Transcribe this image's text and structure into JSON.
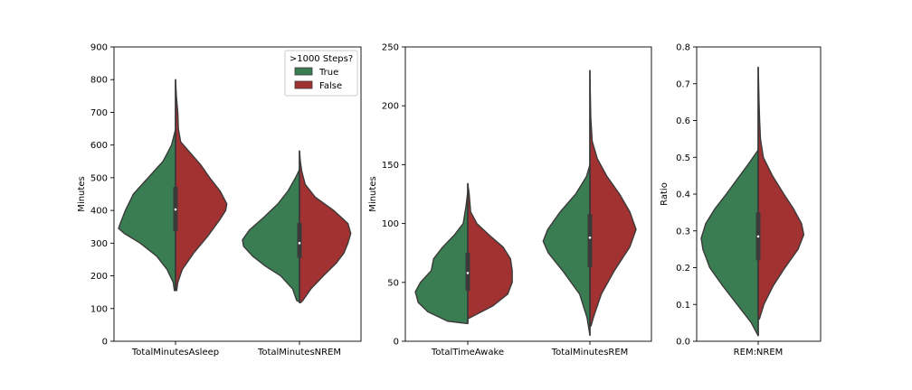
{
  "chart_data": [
    {
      "type": "violin",
      "ylabel": "Minutes",
      "ylim": [
        0,
        900
      ],
      "yticks": [
        0,
        100,
        200,
        300,
        400,
        500,
        600,
        700,
        800,
        900
      ],
      "categories": [
        "TotalMinutesAsleep",
        "TotalMinutesNREM"
      ],
      "legend": {
        "title": ">1000 Steps?",
        "position": "top-right",
        "entries": [
          "True",
          "False"
        ]
      },
      "series": [
        {
          "violins": [
            {
              "ymin": 155,
              "ymax": 648,
              "profile": [
                [
                  155,
                  0.02
                ],
                [
                  180,
                  0.04
                ],
                [
                  220,
                  0.15
                ],
                [
                  260,
                  0.33
                ],
                [
                  300,
                  0.62
                ],
                [
                  330,
                  0.9
                ],
                [
                  345,
                  1.0
                ],
                [
                  360,
                  0.97
                ],
                [
                  400,
                  0.88
                ],
                [
                  450,
                  0.74
                ],
                [
                  500,
                  0.48
                ],
                [
                  550,
                  0.22
                ],
                [
                  600,
                  0.07
                ],
                [
                  648,
                  0.0
                ]
              ],
              "median": 403,
              "q1": 337,
              "q3": 472
            },
            {
              "ymin": 120,
              "ymax": 525,
              "profile": [
                [
                  120,
                  0.0
                ],
                [
                  125,
                  0.05
                ],
                [
                  160,
                  0.12
                ],
                [
                  200,
                  0.33
                ],
                [
                  230,
                  0.6
                ],
                [
                  260,
                  0.82
                ],
                [
                  290,
                  0.98
                ],
                [
                  310,
                  1.0
                ],
                [
                  340,
                  0.88
                ],
                [
                  380,
                  0.62
                ],
                [
                  420,
                  0.38
                ],
                [
                  460,
                  0.2
                ],
                [
                  500,
                  0.07
                ],
                [
                  525,
                  0.0
                ]
              ],
              "median": 300,
              "q1": 255,
              "q3": 362
            }
          ]
        },
        {
          "violins": [
            {
              "ymin": 155,
              "ymax": 800,
              "profile": [
                [
                  155,
                  0.02
                ],
                [
                  180,
                  0.04
                ],
                [
                  220,
                  0.12
                ],
                [
                  270,
                  0.32
                ],
                [
                  320,
                  0.56
                ],
                [
                  370,
                  0.77
                ],
                [
                  400,
                  0.88
                ],
                [
                  420,
                  0.9
                ],
                [
                  460,
                  0.78
                ],
                [
                  500,
                  0.6
                ],
                [
                  540,
                  0.44
                ],
                [
                  580,
                  0.24
                ],
                [
                  610,
                  0.09
                ],
                [
                  650,
                  0.05
                ],
                [
                  700,
                  0.04
                ],
                [
                  750,
                  0.015
                ],
                [
                  800,
                  0.0
                ]
              ],
              "median": 403,
              "q1": 337,
              "q3": 472
            },
            {
              "ymin": 118,
              "ymax": 582,
              "profile": [
                [
                  118,
                  0.02
                ],
                [
                  125,
                  0.06
                ],
                [
                  160,
                  0.2
                ],
                [
                  200,
                  0.42
                ],
                [
                  240,
                  0.65
                ],
                [
                  270,
                  0.78
                ],
                [
                  300,
                  0.85
                ],
                [
                  330,
                  0.9
                ],
                [
                  360,
                  0.85
                ],
                [
                  400,
                  0.6
                ],
                [
                  440,
                  0.28
                ],
                [
                  480,
                  0.1
                ],
                [
                  520,
                  0.04
                ],
                [
                  550,
                  0.015
                ],
                [
                  582,
                  0.0
                ]
              ],
              "median": 300,
              "q1": 255,
              "q3": 362
            }
          ]
        }
      ]
    },
    {
      "type": "violin",
      "ylabel": "Minutes",
      "ylim": [
        0,
        250
      ],
      "yticks": [
        0,
        50,
        100,
        150,
        200,
        250
      ],
      "categories": [
        "TotalTimeAwake",
        "TotalMinutesREM"
      ],
      "series": [
        {
          "violins": [
            {
              "ymin": 15,
              "ymax": 127,
              "profile": [
                [
                  15,
                  0.0
                ],
                [
                  17,
                  0.35
                ],
                [
                  25,
                  0.7
                ],
                [
                  33,
                  0.87
                ],
                [
                  42,
                  0.92
                ],
                [
                  50,
                  0.83
                ],
                [
                  60,
                  0.64
                ],
                [
                  70,
                  0.6
                ],
                [
                  80,
                  0.44
                ],
                [
                  90,
                  0.24
                ],
                [
                  100,
                  0.08
                ],
                [
                  115,
                  0.03
                ],
                [
                  127,
                  0.0
                ]
              ],
              "median": 58,
              "q1": 43,
              "q3": 75
            },
            {
              "ymin": 5,
              "ymax": 150,
              "profile": [
                [
                  5,
                  0.0
                ],
                [
                  20,
                  0.05
                ],
                [
                  40,
                  0.18
                ],
                [
                  60,
                  0.48
                ],
                [
                  75,
                  0.73
                ],
                [
                  85,
                  0.82
                ],
                [
                  95,
                  0.74
                ],
                [
                  110,
                  0.52
                ],
                [
                  125,
                  0.25
                ],
                [
                  140,
                  0.06
                ],
                [
                  150,
                  0.0
                ]
              ],
              "median": 88,
              "q1": 63,
              "q3": 108
            }
          ]
        },
        {
          "violins": [
            {
              "ymin": 19,
              "ymax": 134,
              "profile": [
                [
                  19,
                  0.0
                ],
                [
                  22,
                  0.12
                ],
                [
                  30,
                  0.44
                ],
                [
                  40,
                  0.7
                ],
                [
                  50,
                  0.78
                ],
                [
                  60,
                  0.78
                ],
                [
                  70,
                  0.75
                ],
                [
                  80,
                  0.62
                ],
                [
                  90,
                  0.38
                ],
                [
                  100,
                  0.16
                ],
                [
                  110,
                  0.05
                ],
                [
                  125,
                  0.025
                ],
                [
                  134,
                  0.0
                ]
              ],
              "median": 58,
              "q1": 43,
              "q3": 75
            },
            {
              "ymin": 13,
              "ymax": 230,
              "profile": [
                [
                  13,
                  0.02
                ],
                [
                  20,
                  0.06
                ],
                [
                  40,
                  0.2
                ],
                [
                  60,
                  0.43
                ],
                [
                  80,
                  0.7
                ],
                [
                  95,
                  0.81
                ],
                [
                  110,
                  0.7
                ],
                [
                  125,
                  0.52
                ],
                [
                  140,
                  0.3
                ],
                [
                  155,
                  0.13
                ],
                [
                  170,
                  0.04
                ],
                [
                  190,
                  0.015
                ],
                [
                  215,
                  0.005
                ],
                [
                  230,
                  0.0
                ]
              ],
              "median": 88,
              "q1": 63,
              "q3": 108
            }
          ]
        }
      ]
    },
    {
      "type": "violin",
      "ylabel": "Ratio",
      "ylim": [
        0,
        0.8
      ],
      "yticks": [
        "0.0",
        "0.1",
        "0.2",
        "0.3",
        "0.4",
        "0.5",
        "0.6",
        "0.7",
        "0.8"
      ],
      "categories": [
        "REM:NREM"
      ],
      "series": [
        {
          "violins": [
            {
              "ymin": 0.015,
              "ymax": 0.52,
              "profile": [
                [
                  0.015,
                  0.0
                ],
                [
                  0.05,
                  0.12
                ],
                [
                  0.1,
                  0.37
                ],
                [
                  0.15,
                  0.62
                ],
                [
                  0.2,
                  0.85
                ],
                [
                  0.25,
                  0.97
                ],
                [
                  0.28,
                  1.0
                ],
                [
                  0.32,
                  0.92
                ],
                [
                  0.36,
                  0.76
                ],
                [
                  0.4,
                  0.56
                ],
                [
                  0.44,
                  0.37
                ],
                [
                  0.48,
                  0.18
                ],
                [
                  0.52,
                  0.0
                ]
              ],
              "median": 0.285,
              "q1": 0.22,
              "q3": 0.35
            }
          ]
        },
        {
          "violins": [
            {
              "ymin": 0.06,
              "ymax": 0.745,
              "profile": [
                [
                  0.06,
                  0.02
                ],
                [
                  0.1,
                  0.1
                ],
                [
                  0.15,
                  0.26
                ],
                [
                  0.2,
                  0.47
                ],
                [
                  0.25,
                  0.7
                ],
                [
                  0.29,
                  0.8
                ],
                [
                  0.32,
                  0.76
                ],
                [
                  0.36,
                  0.62
                ],
                [
                  0.4,
                  0.45
                ],
                [
                  0.45,
                  0.25
                ],
                [
                  0.5,
                  0.09
                ],
                [
                  0.55,
                  0.04
                ],
                [
                  0.6,
                  0.025
                ],
                [
                  0.65,
                  0.015
                ],
                [
                  0.7,
                  0.008
                ],
                [
                  0.745,
                  0.0
                ]
              ],
              "median": 0.285,
              "q1": 0.22,
              "q3": 0.35
            }
          ]
        }
      ]
    }
  ],
  "colors": {
    "true": "#3a7d52",
    "false": "#a23131",
    "edge": "#3a3a3a",
    "box": "#3a3a3a"
  }
}
